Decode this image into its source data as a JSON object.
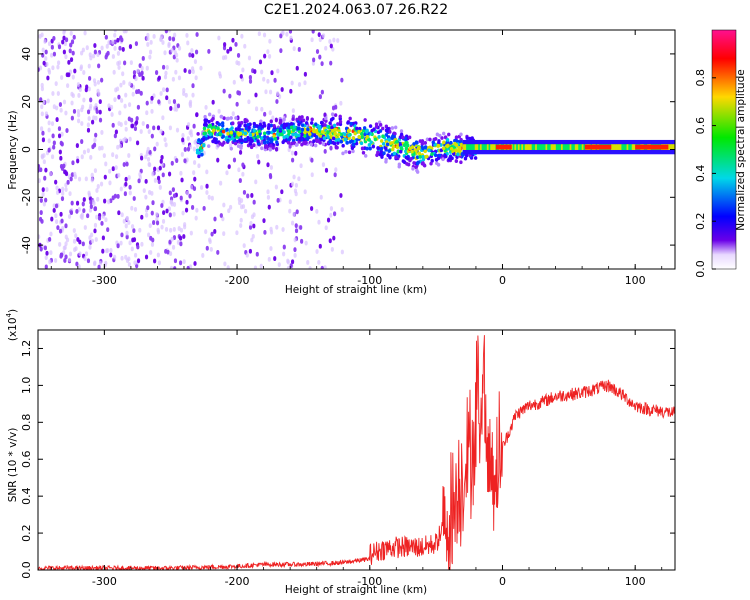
{
  "title": "C2E1.2024.063.07.26.R22",
  "chart_data": [
    {
      "type": "heatmap",
      "xlabel": "Height of straight line (km)",
      "ylabel": "Frequency (Hz)",
      "xlim": [
        -350,
        130
      ],
      "ylim": [
        -50,
        50
      ],
      "x_ticks": [
        -300,
        -200,
        -100,
        0,
        100
      ],
      "y_ticks": [
        -40,
        -20,
        0,
        20,
        40
      ],
      "colorbar": {
        "label": "Normalized spectral amplitude",
        "range": [
          0.0,
          1.0
        ],
        "ticks": [
          "0.0",
          "0.2",
          "0.4",
          "0.6",
          "0.8"
        ],
        "colors": [
          "#ffffff",
          "#6a00e8",
          "#0000ff",
          "#00d8e8",
          "#00e800",
          "#ffd800",
          "#ff0000",
          "#ff1090"
        ]
      },
      "description_note": "",
      "ridge": [
        {
          "x": -225,
          "f": 8
        },
        {
          "x": -200,
          "f": 7
        },
        {
          "x": -175,
          "f": 6
        },
        {
          "x": -150,
          "f": 8
        },
        {
          "x": -125,
          "f": 7
        },
        {
          "x": -110,
          "f": 6
        },
        {
          "x": -90,
          "f": 3
        },
        {
          "x": -70,
          "f": 0
        },
        {
          "x": -60,
          "f": -2
        },
        {
          "x": -45,
          "f": 1
        },
        {
          "x": -30,
          "f": 0
        },
        {
          "x": -15,
          "f": 1
        },
        {
          "x": 0,
          "f": 1
        },
        {
          "x": 50,
          "f": 1
        },
        {
          "x": 130,
          "f": 1
        }
      ]
    },
    {
      "type": "line",
      "xlabel": "Height of straight line (km)",
      "ylabel": "SNR (10 * v/v)",
      "y_multiplier": "(x10",
      "y_multiplier_exp": "4",
      "y_multiplier_close": ")",
      "xlim": [
        -350,
        130
      ],
      "ylim": [
        0.0,
        1.3
      ],
      "x_ticks": [
        -300,
        -200,
        -100,
        0,
        100
      ],
      "y_ticks": [
        "0.0",
        "0.2",
        "0.4",
        "0.6",
        "0.8",
        "1.0",
        "1.2"
      ],
      "color": "#ee2222",
      "x": [
        -350,
        -300,
        -250,
        -200,
        -180,
        -150,
        -120,
        -100,
        -90,
        -80,
        -70,
        -60,
        -50,
        -40,
        -30,
        -20,
        -15,
        -10,
        -5,
        0,
        10,
        20,
        30,
        40,
        50,
        60,
        70,
        80,
        90,
        100,
        110,
        120,
        130
      ],
      "y": [
        0.01,
        0.01,
        0.01,
        0.02,
        0.03,
        0.03,
        0.04,
        0.06,
        0.09,
        0.1,
        0.1,
        0.1,
        0.12,
        0.28,
        0.52,
        0.72,
        0.92,
        0.58,
        0.55,
        0.66,
        0.84,
        0.89,
        0.91,
        0.94,
        0.95,
        0.96,
        0.98,
        1.0,
        0.95,
        0.89,
        0.87,
        0.86,
        0.85
      ]
    }
  ]
}
